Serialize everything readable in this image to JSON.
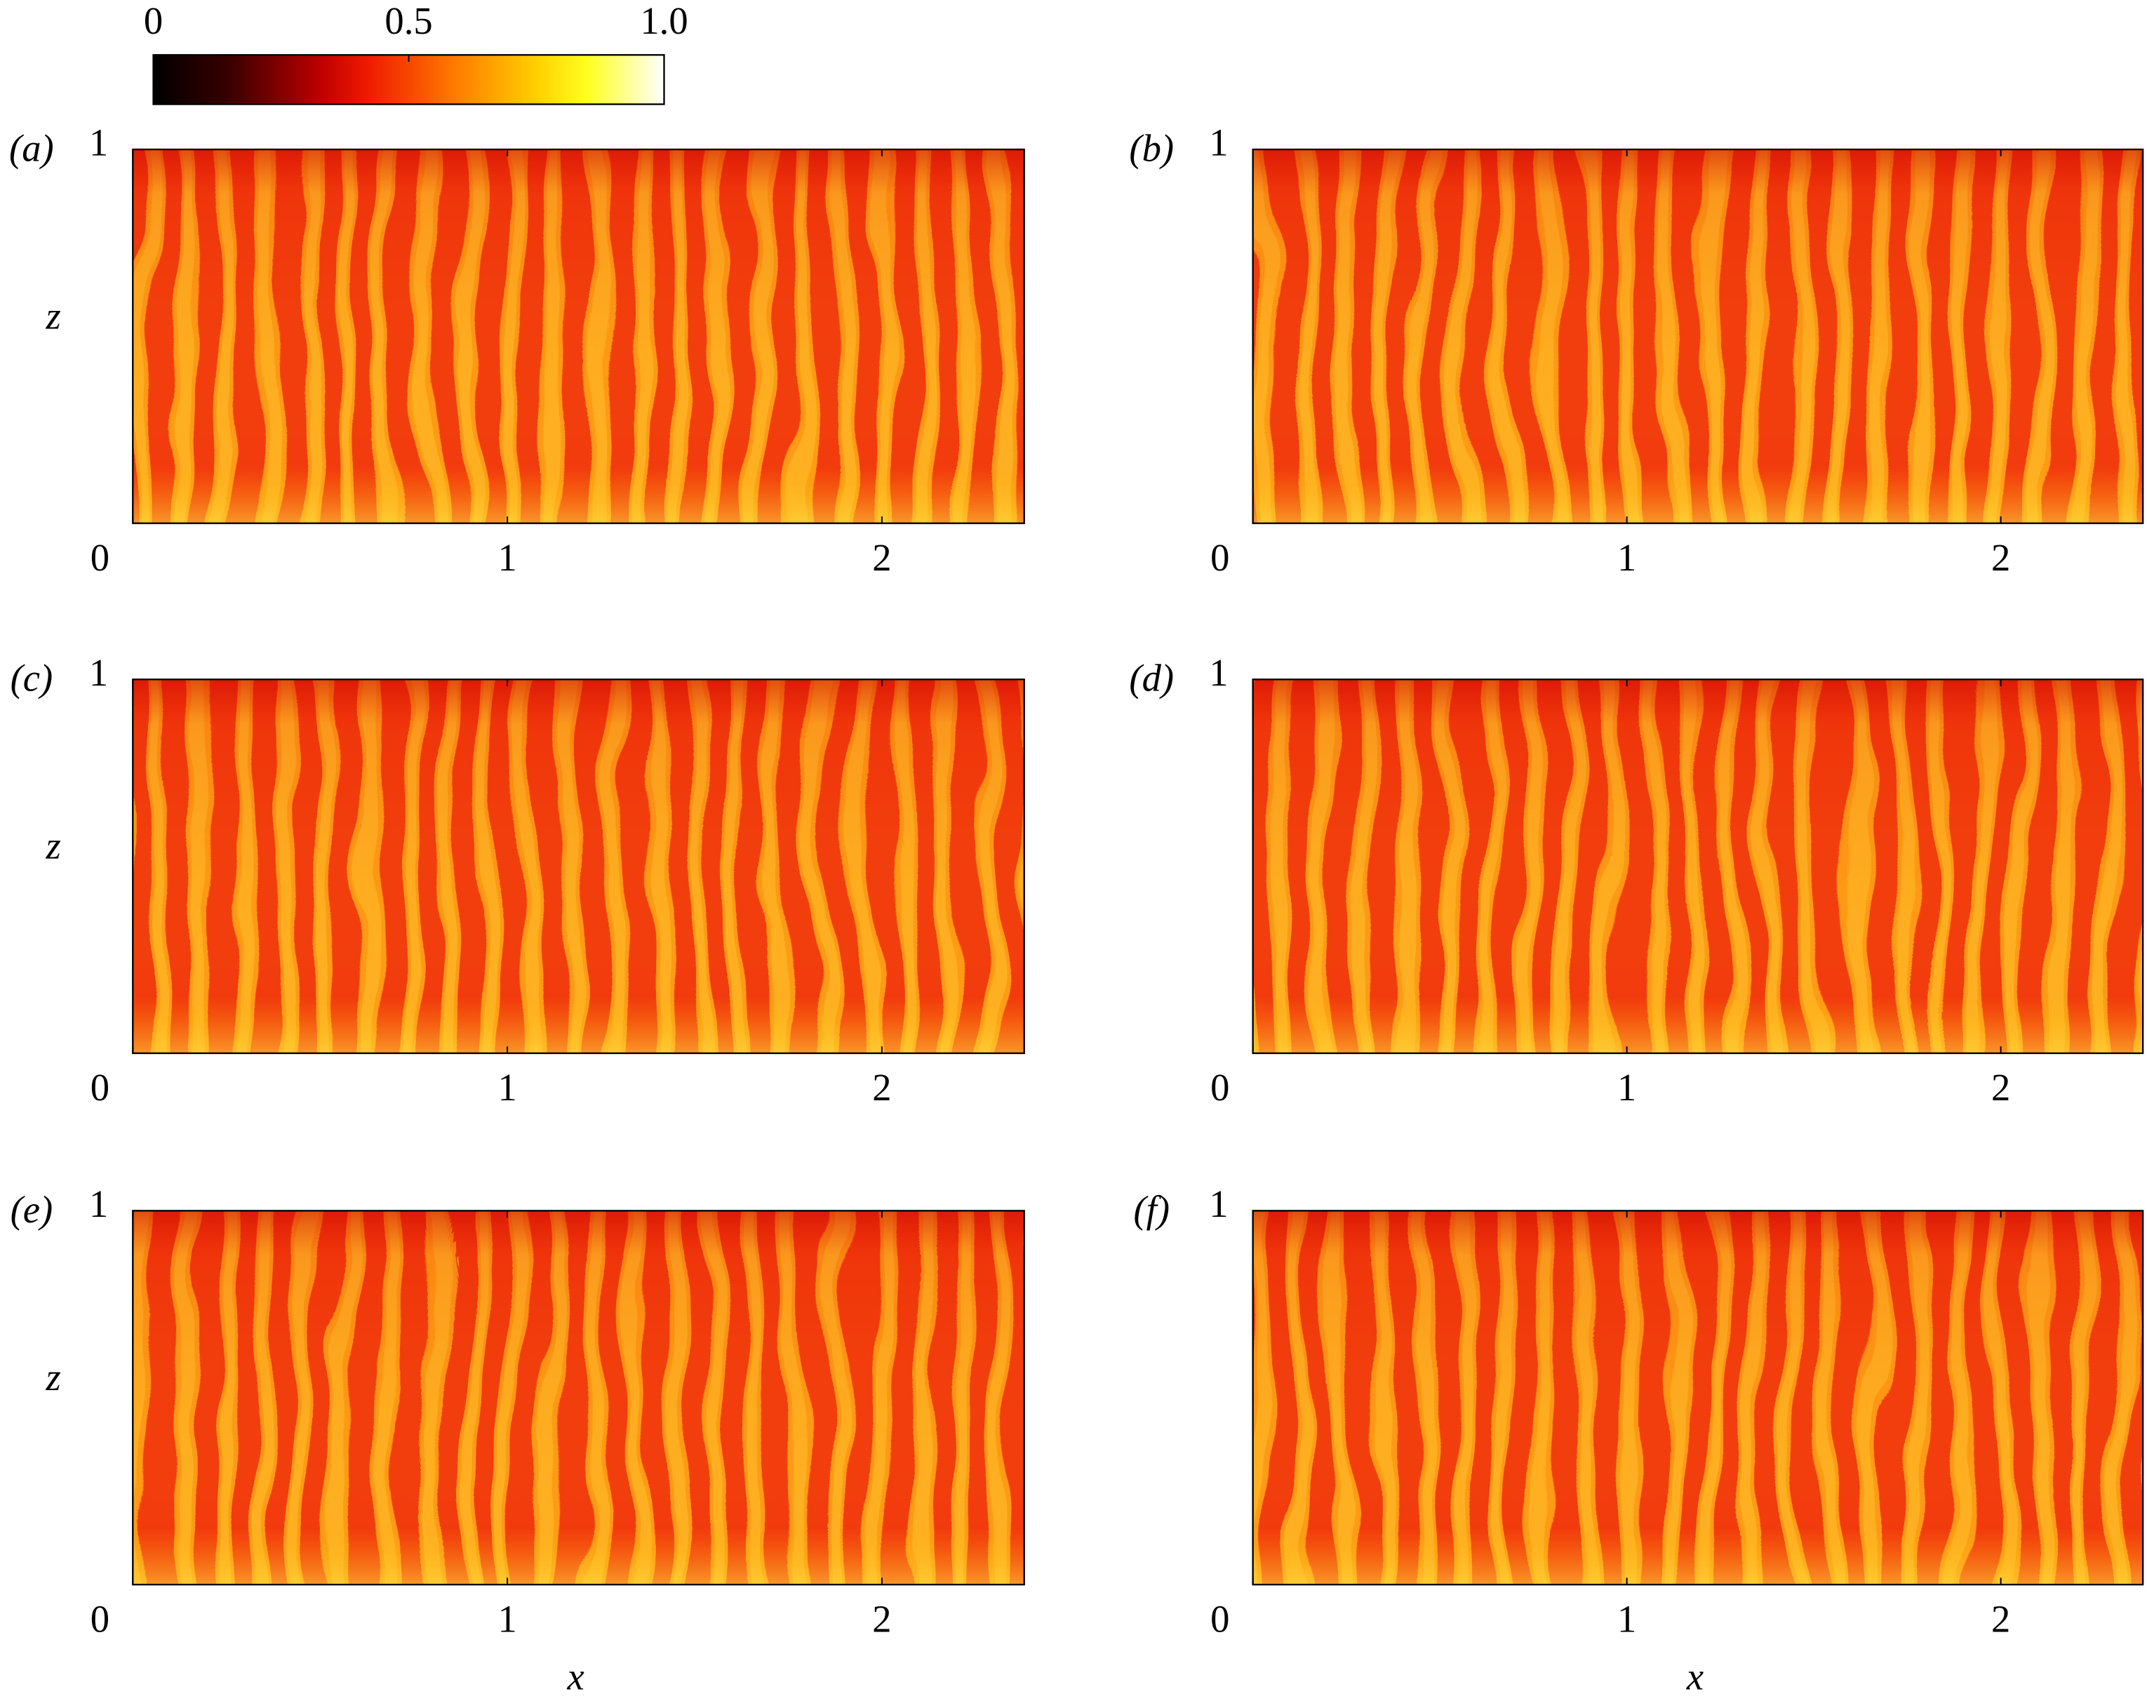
{
  "colorbar": {
    "lim": [
      0,
      1
    ],
    "ticks": [
      0,
      0.5,
      {
        "value": 1,
        "label": "1.0"
      }
    ]
  },
  "chart_data": [
    {
      "type": "heatmap",
      "panel": "(a)",
      "ylabel": "z",
      "xlim": [
        0,
        2.38
      ],
      "xticks": [
        0,
        1,
        2
      ],
      "ylim": [
        0,
        1
      ],
      "yticks": [
        1
      ]
    },
    {
      "type": "heatmap",
      "panel": "(b)",
      "xlim": [
        0,
        2.38
      ],
      "xticks": [
        0,
        1,
        2
      ],
      "ylim": [
        0,
        1
      ],
      "yticks": [
        1
      ]
    },
    {
      "type": "heatmap",
      "panel": "(c)",
      "ylabel": "z",
      "xlim": [
        0,
        2.38
      ],
      "xticks": [
        0,
        1,
        2
      ],
      "ylim": [
        0,
        1
      ],
      "yticks": [
        1
      ]
    },
    {
      "type": "heatmap",
      "panel": "(d)",
      "xlim": [
        0,
        2.38
      ],
      "xticks": [
        0,
        1,
        2
      ],
      "ylim": [
        0,
        1
      ],
      "yticks": [
        1
      ]
    },
    {
      "type": "heatmap",
      "panel": "(e)",
      "ylabel": "z",
      "xlabel": "x",
      "xlim": [
        0,
        2.38
      ],
      "xticks": [
        0,
        1,
        2
      ],
      "ylim": [
        0,
        1
      ],
      "yticks": [
        1
      ]
    },
    {
      "type": "heatmap",
      "panel": "(f)",
      "xlabel": "x",
      "xlim": [
        0,
        2.38
      ],
      "xticks": [
        0,
        1,
        2
      ],
      "ylim": [
        0,
        1
      ],
      "yticks": [
        1
      ]
    }
  ]
}
